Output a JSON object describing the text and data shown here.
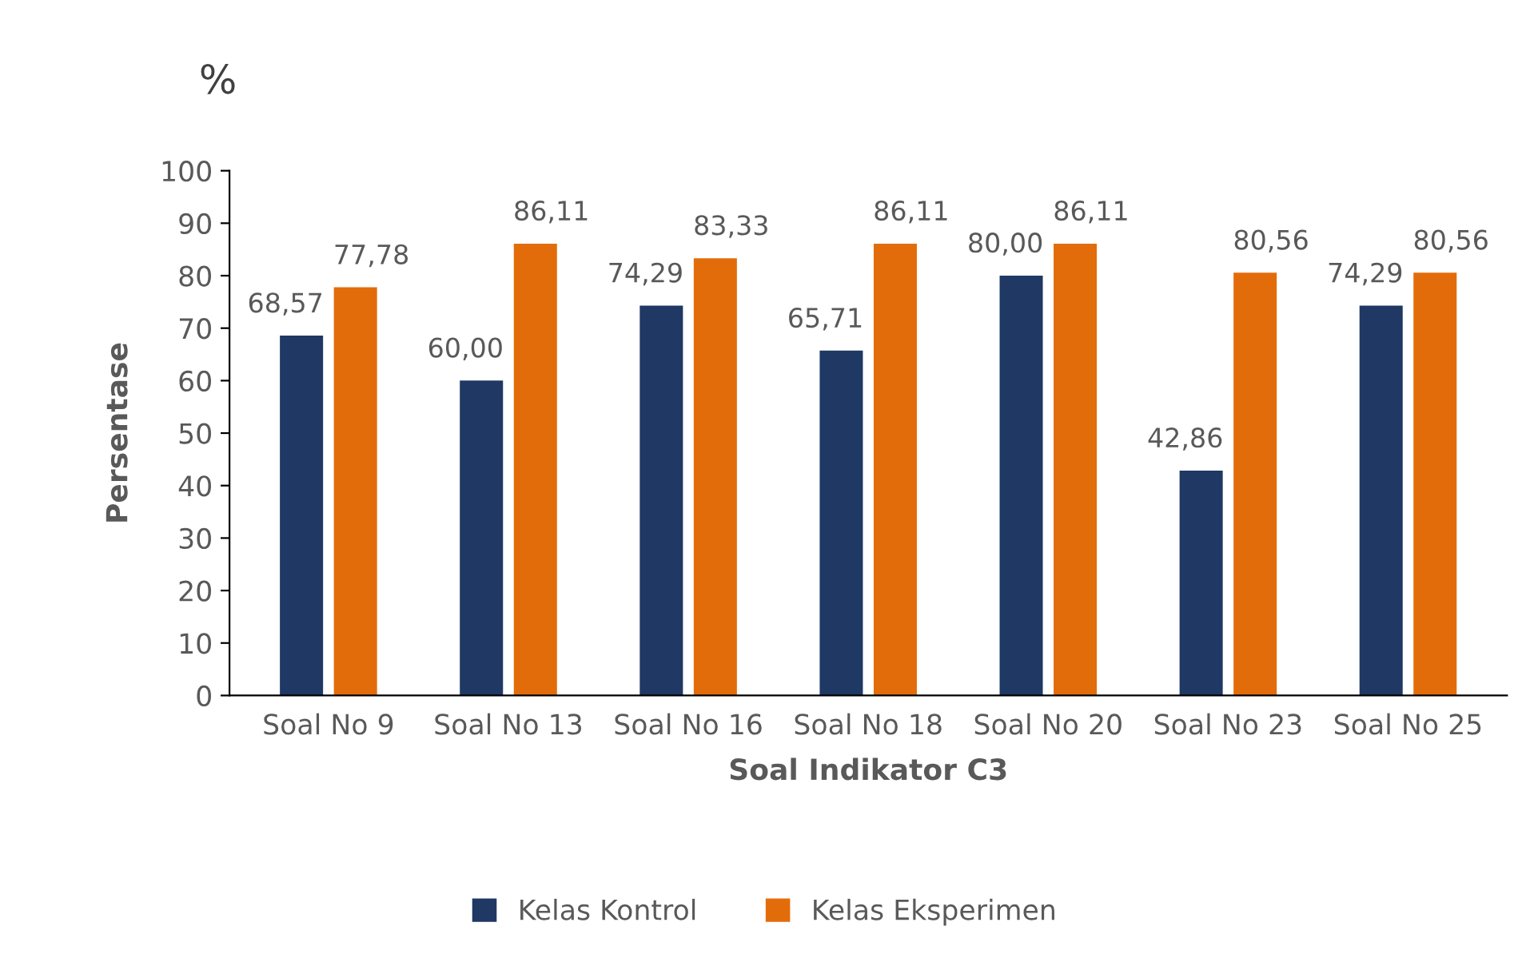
{
  "chart_data": {
    "type": "bar",
    "xlabel": "Soal Indikator C3",
    "ylabel": "Persentase",
    "annotations": [
      "%"
    ],
    "categories": [
      "Soal No 9",
      "Soal No 13",
      "Soal No 16",
      "Soal No 18",
      "Soal No 20",
      "Soal No 23",
      "Soal No 25"
    ],
    "series": [
      {
        "name": "Kelas Kontrol",
        "color": "#1f3864",
        "values": [
          68.57,
          60.0,
          74.29,
          65.71,
          80.0,
          42.86,
          74.29
        ],
        "value_labels": [
          "68,57",
          "60,00",
          "74,29",
          "65,71",
          "80,00",
          "42,86",
          "74,29"
        ]
      },
      {
        "name": "Kelas Eksperimen",
        "color": "#e36c0a",
        "values": [
          77.78,
          86.11,
          83.33,
          86.11,
          86.11,
          80.56,
          80.56
        ],
        "value_labels": [
          "77,78",
          "86,11",
          "83,33",
          "86,11",
          "86,11",
          "80,56",
          "80,56"
        ]
      }
    ],
    "ylim": [
      0,
      100
    ],
    "yticks": [
      0,
      10,
      20,
      30,
      40,
      50,
      60,
      70,
      80,
      90,
      100
    ],
    "grid": false,
    "legend": "bottom"
  }
}
